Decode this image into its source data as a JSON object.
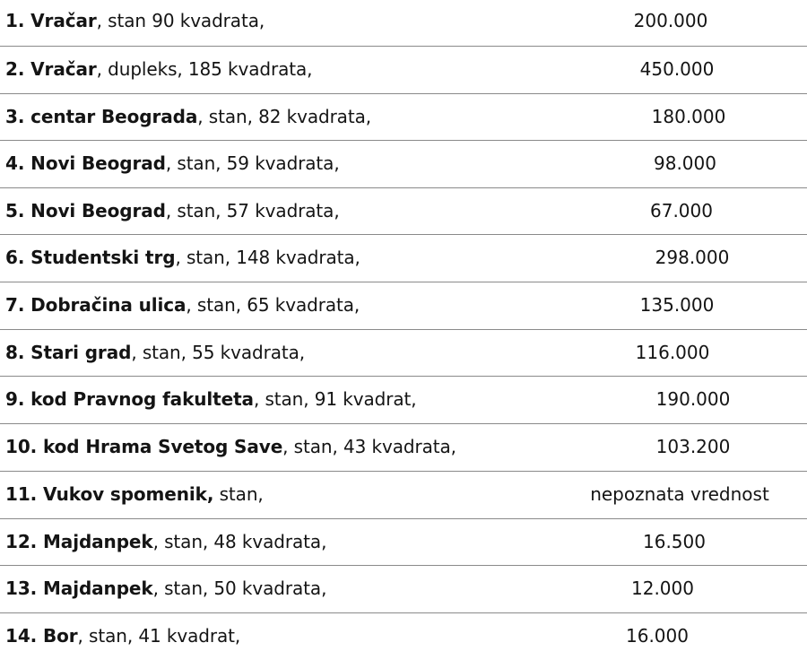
{
  "rows": [
    {
      "name": "1. Vračar",
      "detail": ", stan 90 kvadrata,",
      "price": "200.000"
    },
    {
      "name": "2. Vračar",
      "detail": ", dupleks, 185 kvadrata,",
      "price": "450.000"
    },
    {
      "name": "3. centar Beograda",
      "detail": ", stan, 82 kvadrata,",
      "price": "180.000"
    },
    {
      "name": "4. Novi Beograd",
      "detail": ", stan, 59 kvadrata,",
      "price": "98.000"
    },
    {
      "name": "5. Novi Beograd",
      "detail": ", stan, 57 kvadrata,",
      "price": "67.000"
    },
    {
      "name": "6. Studentski trg",
      "detail": ", stan, 148 kvadrata,",
      "price": "298.000"
    },
    {
      "name": "7. Dobračina ulica",
      "detail": ", stan, 65 kvadrata,",
      "price": "135.000"
    },
    {
      "name": "8. Stari grad",
      "detail": ", stan, 55 kvadrata,",
      "price": "116.000"
    },
    {
      "name": "9. kod Pravnog fakulteta",
      "detail": ", stan, 91 kvadrat,",
      "price": "190.000"
    },
    {
      "name": "10. kod Hrama Svetog Save",
      "detail": ", stan, 43 kvadrata,",
      "price": "103.200"
    },
    {
      "name": "11. Vukov spomenik,",
      "detail": " stan,",
      "price": "nepoznata vrednost"
    },
    {
      "name": "12. Majdanpek",
      "detail": ", stan, 48 kvadrata,",
      "price": "16.500"
    },
    {
      "name": "13. Majdanpek",
      "detail": ", stan, 50 kvadrata,",
      "price": "12.000"
    },
    {
      "name": "14. Bor",
      "detail": ", stan, 41 kvadrat,",
      "price": "16.000"
    }
  ],
  "colors": {
    "text": "#141414",
    "rule": "#8a8a8a",
    "background": "#ffffff"
  }
}
